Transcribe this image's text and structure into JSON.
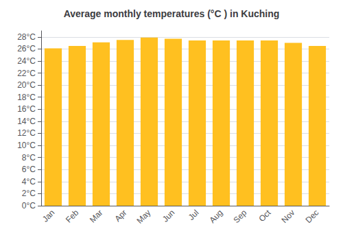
{
  "chart_data": {
    "type": "bar",
    "title": "Average monthly temperatures (°C ) in Kuching",
    "categories": [
      "Jan",
      "Feb",
      "Mar",
      "Apr",
      "May",
      "Jun",
      "Jul",
      "Aug",
      "Sep",
      "Oct",
      "Nov",
      "Dec"
    ],
    "values": [
      26.1,
      26.5,
      27.1,
      27.5,
      27.9,
      27.7,
      27.4,
      27.4,
      27.4,
      27.4,
      27.0,
      26.5
    ],
    "color": "#FFC020",
    "ylim": [
      0,
      29
    ],
    "yticks": [
      {
        "value": 0,
        "label": "0°C"
      },
      {
        "value": 2,
        "label": "2°C"
      },
      {
        "value": 4,
        "label": "4°C"
      },
      {
        "value": 6,
        "label": "6°C"
      },
      {
        "value": 8,
        "label": "8°C"
      },
      {
        "value": 10,
        "label": "10°C"
      },
      {
        "value": 12,
        "label": "12°C"
      },
      {
        "value": 14,
        "label": "14°C"
      },
      {
        "value": 16,
        "label": "16°C"
      },
      {
        "value": 18,
        "label": "18°C"
      },
      {
        "value": 20,
        "label": "20°C"
      },
      {
        "value": 22,
        "label": "22°C"
      },
      {
        "value": 24,
        "label": "24°C"
      },
      {
        "value": 26,
        "label": "26°C"
      },
      {
        "value": 28,
        "label": "28°C"
      }
    ],
    "grid": true
  }
}
